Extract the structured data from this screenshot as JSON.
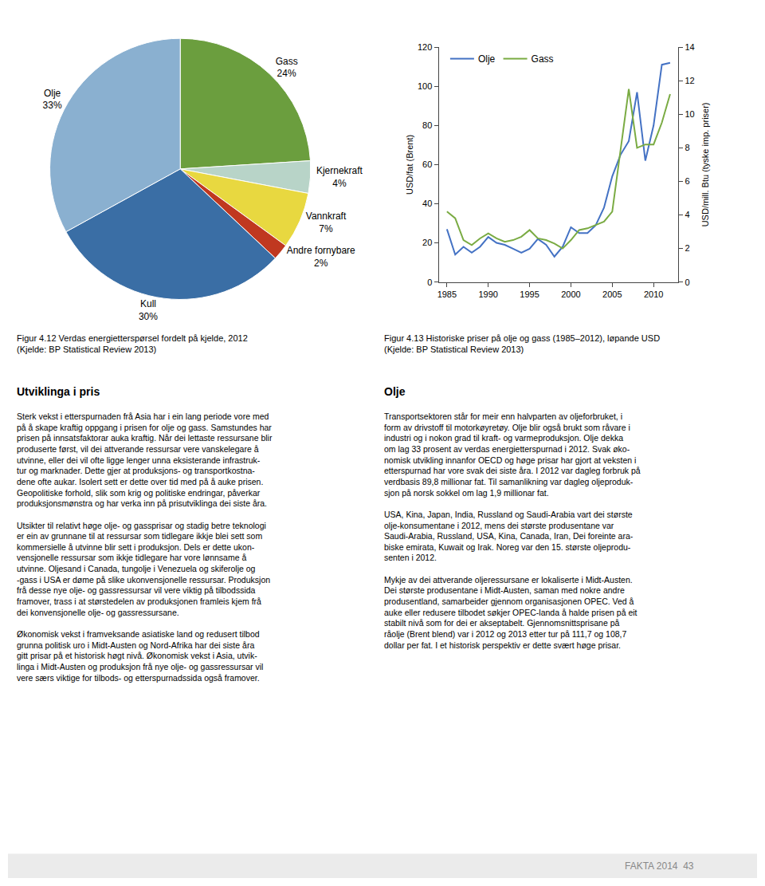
{
  "chart_data": [
    {
      "type": "pie",
      "title": "Figur 4.12 Verdas energietterspørsel fordelt på kjelde, 2012",
      "subtitle": "(Kjelde: BP Statistical Review 2013)",
      "categories": [
        "Gass",
        "Kjernekraft",
        "Vannkraft",
        "Andre fornybare",
        "Kull",
        "Olje"
      ],
      "values": [
        24,
        4,
        7,
        2,
        30,
        33
      ],
      "value_labels": [
        "24%",
        "4%",
        "7%",
        "2%",
        "30%",
        "33%"
      ],
      "data_labels": true,
      "colors": [
        "#6b9e3e",
        "#b8d4c8",
        "#e8d840",
        "#c03820",
        "#3a6ea5",
        "#8ab0d0"
      ]
    },
    {
      "type": "line",
      "title": "Figur 4.13 Historiske priser på olje og gass (1985–2012), løpande USD",
      "subtitle": "(Kjelde: BP Statistical Review 2013)",
      "x": [
        1985,
        1986,
        1987,
        1988,
        1989,
        1990,
        1991,
        1992,
        1993,
        1994,
        1995,
        1996,
        1997,
        1998,
        1999,
        2000,
        2001,
        2002,
        2003,
        2004,
        2005,
        2006,
        2007,
        2008,
        2009,
        2010,
        2011,
        2012
      ],
      "series": [
        {
          "name": "Olje",
          "color": "#4472c4",
          "values": [
            27,
            14,
            18,
            15,
            18,
            23,
            20,
            19,
            17,
            15,
            17,
            22,
            19,
            13,
            18,
            28,
            25,
            25,
            29,
            38,
            54,
            65,
            72,
            97,
            62,
            80,
            111,
            112
          ]
        },
        {
          "name": "Gass",
          "color": "#7aab43",
          "axis": "y2",
          "values": [
            4.2,
            3.8,
            2.5,
            2.2,
            2.6,
            2.9,
            2.6,
            2.4,
            2.5,
            2.7,
            3.1,
            2.6,
            2.5,
            2.3,
            2.0,
            2.5,
            3.1,
            3.2,
            3.4,
            3.6,
            4.2,
            7.9,
            11.5,
            8.0,
            8.2,
            8.2,
            9.5,
            11.2
          ]
        }
      ],
      "ylabel": "USD/fat (Brent)",
      "y2label": "USD/mill. Btu (tyske imp. priser)",
      "xlim": [
        1984,
        2013
      ],
      "xticks": [
        1985,
        1990,
        1995,
        2000,
        2005,
        2010
      ],
      "ylim": [
        0,
        120
      ],
      "yticks": [
        0,
        20,
        40,
        60,
        80,
        100,
        120
      ],
      "y2lim": [
        0,
        14
      ],
      "y2ticks": [
        0,
        2,
        4,
        6,
        8,
        10,
        12,
        14
      ],
      "grid": false,
      "legend": "upper left"
    }
  ],
  "annotations": [
    "Utviklinga i pris",
    "Sterk vekst i etterspurnaden frå Asia har i ein lang periode vore med\npå å skape kraftig oppgang i prisen for olje og gass. Samstundes har\nprisen på innsatsfaktorar auka kraftig. Når dei lettaste ressursane blir\nproduserte først, vil dei attverande ressursar vere vanskelegare å\nutvinne, eller dei vil ofte ligge lenger unna eksisterande infrastruk-\ntur og marknader. Dette gjer at produksjons- og transportkostna-\ndene ofte aukar. Isolert sett er dette over tid med på å auke prisen.\nGeopolitiske forhold, slik som krig og politiske endringar, påverkar\nproduksjonsmønstra og har verka inn på prisutviklinga dei siste åra.\n\nUtsikter til relativt høge olje- og gassprisar og stadig betre teknologi\ner ein av grunnane til at ressursar som tidlegare ikkje blei sett som\nkommersielle å utvinne blir sett i produksjon. Dels er dette ukon-\nvensjonelle ressursar som ikkje tidlegare har vore lønnsame å\nutvinne. Oljesand i Canada, tungolje i Venezuela og skiferolje og\n-gass i USA er døme på slike ukonvensjonelle ressursar. Produksjon\nfrå desse nye olje- og gassressursar vil vere viktig på tilbodssida\nframover, trass i at størstedelen av produksjonen framleis kjem frå\ndei konvensjonelle olje- og gassressursane.\n\nØkonomisk vekst i framveksande asiatiske land og redusert tilbod\ngrunna politisk uro i Midt-Austen og Nord-Afrika har dei siste åra\ngitt prisar på et historisk høgt nivå. Økonomisk vekst i Asia, utvik-\nlinga i Midt-Austen og produksjon frå nye olje- og gassressursar vil\nvere særs viktige for tilbods- og etterspurnadssida også framover.",
    "Olje",
    "Transportsektoren står for meir enn halvparten av oljeforbruket, i\nform av drivstoff til motorkøyretøy. Olje blir også brukt som råvare i\nindustri og i nokon grad til kraft- og varmeproduksjon. Olje dekka\nom lag 33 prosent av verdas energietterspurnad i 2012. Svak øko-\nnomisk utvikling innanfor OECD og høge prisar har gjort at veksten i\netterspurnad har vore svak dei siste åra. I 2012 var dagleg forbruk på\nverdbasis 89,8 millionar fat. Til samanlikning var dagleg oljeproduk-\nsjon på norsk sokkel om lag 1,9 millionar fat.\n\nUSA, Kina, Japan, India, Russland og Saudi-Arabia vart dei største\nolje-konsumentane i 2012, mens dei største produsentane var\nSaudi-Arabia, Russland, USA, Kina, Canada, Iran, Dei foreinte ara-\nbiske emirata, Kuwait og Irak. Noreg var den 15. største oljeprodu-\nsenten i 2012.\n\nMykje av dei attverande oljeressursane er lokaliserte i Midt-Austen.\nDei største produsentane i Midt-Austen, saman med nokre andre\nprodusentland, samarbeider gjennom organisasjonen OPEC. Ved å\nauke eller redusere tilbodet søkjer OPEC-landa å halde prisen på eit\nstabilt nivå som for dei er akseptabelt. Gjennomsnittsprisane på\nråolje (Brent blend) var i 2012 og 2013 etter tur på 111,7 og 108,7\ndollar per fat. I et historisk perspektiv er dette svært høge prisar.",
    "FAKTA 2014  43"
  ]
}
